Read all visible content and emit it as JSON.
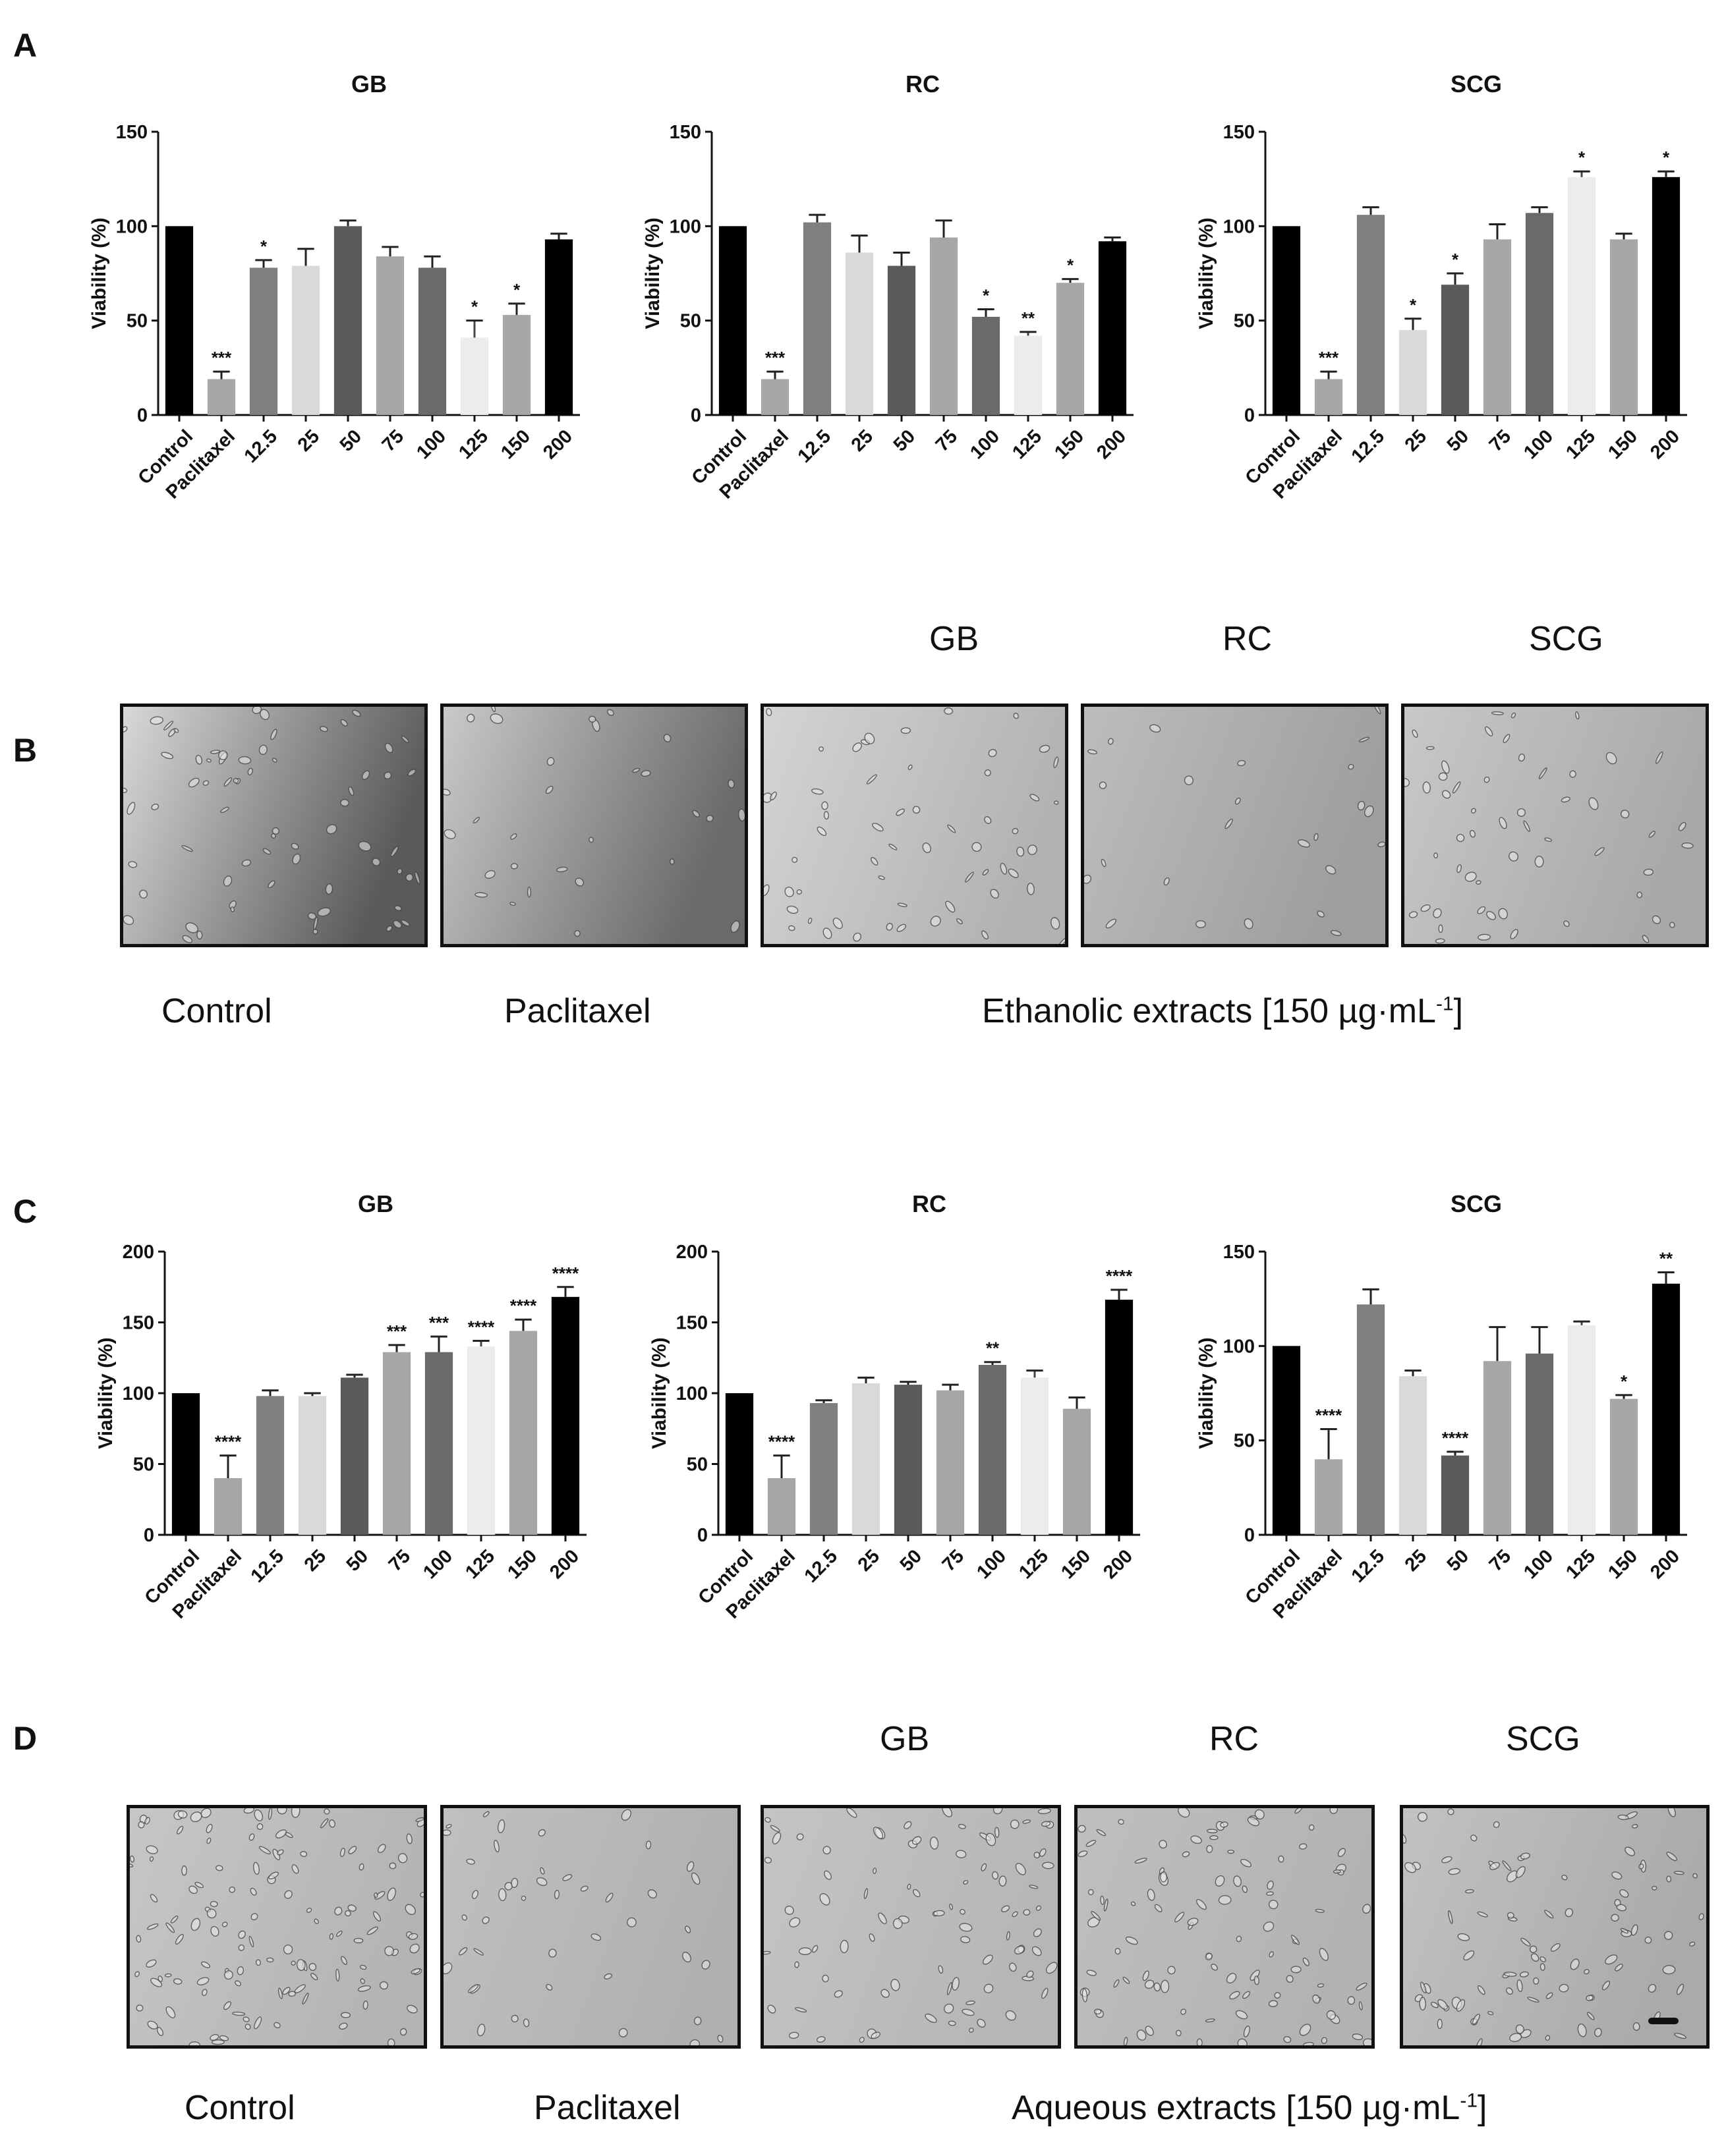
{
  "panels": {
    "A": "A",
    "B": "B",
    "C": "C",
    "D": "D"
  },
  "chart_data": [
    {
      "type": "bar",
      "title": "GB",
      "ylabel": "Viability (%)",
      "categories": [
        "Control",
        "Paclitaxel",
        "12.5",
        "25",
        "50",
        "75",
        "100",
        "125",
        "150",
        "200"
      ],
      "values": [
        100,
        19,
        78,
        79,
        100,
        84,
        78,
        41,
        53,
        93
      ],
      "errors": [
        0,
        4,
        4,
        9,
        3,
        5,
        6,
        9,
        6,
        3
      ],
      "significance": [
        "",
        "***",
        "*",
        "",
        "",
        "",
        "",
        "*",
        "*",
        ""
      ],
      "colors": [
        "#000000",
        "#a6a6a6",
        "#7f7f7f",
        "#d9d9d9",
        "#5a5a5a",
        "#a6a6a6",
        "#6a6a6a",
        "#ececec",
        "#a6a6a6",
        "#000000"
      ],
      "ylim": [
        0,
        150
      ],
      "yticks": [
        0,
        50,
        100,
        150
      ]
    },
    {
      "type": "bar",
      "title": "RC",
      "ylabel": "Viability (%)",
      "categories": [
        "Control",
        "Paclitaxel",
        "12.5",
        "25",
        "50",
        "75",
        "100",
        "125",
        "150",
        "200"
      ],
      "values": [
        100,
        19,
        102,
        86,
        79,
        94,
        52,
        42,
        70,
        92
      ],
      "errors": [
        0,
        4,
        4,
        9,
        7,
        9,
        4,
        2,
        2,
        2
      ],
      "significance": [
        "",
        "***",
        "",
        "",
        "",
        "",
        "*",
        "**",
        "*",
        ""
      ],
      "colors": [
        "#000000",
        "#a6a6a6",
        "#7f7f7f",
        "#d9d9d9",
        "#5a5a5a",
        "#a6a6a6",
        "#6a6a6a",
        "#ececec",
        "#a6a6a6",
        "#000000"
      ],
      "ylim": [
        0,
        150
      ],
      "yticks": [
        0,
        50,
        100,
        150
      ]
    },
    {
      "type": "bar",
      "title": "SCG",
      "ylabel": "Viability (%)",
      "categories": [
        "Control",
        "Paclitaxel",
        "12.5",
        "25",
        "50",
        "75",
        "100",
        "125",
        "150",
        "200"
      ],
      "values": [
        100,
        19,
        106,
        45,
        69,
        93,
        107,
        126,
        93,
        126
      ],
      "errors": [
        0,
        4,
        4,
        6,
        6,
        8,
        3,
        3,
        3,
        3
      ],
      "significance": [
        "",
        "***",
        "",
        "*",
        "*",
        "",
        "",
        "*",
        "",
        "*"
      ],
      "colors": [
        "#000000",
        "#a6a6a6",
        "#7f7f7f",
        "#d9d9d9",
        "#5a5a5a",
        "#a6a6a6",
        "#6a6a6a",
        "#ececec",
        "#a6a6a6",
        "#000000"
      ],
      "ylim": [
        0,
        150
      ],
      "yticks": [
        0,
        50,
        100,
        150
      ]
    },
    {
      "type": "bar",
      "title": "GB",
      "ylabel": "Viability (%)",
      "categories": [
        "Control",
        "Paclitaxel",
        "12.5",
        "25",
        "50",
        "75",
        "100",
        "125",
        "150",
        "200"
      ],
      "values": [
        100,
        40,
        98,
        98,
        111,
        129,
        129,
        133,
        144,
        168
      ],
      "errors": [
        0,
        16,
        4,
        2,
        2,
        5,
        11,
        4,
        8,
        7
      ],
      "significance": [
        "",
        "****",
        "",
        "",
        "",
        "***",
        "***",
        "****",
        "****",
        "****"
      ],
      "colors": [
        "#000000",
        "#a6a6a6",
        "#7f7f7f",
        "#d9d9d9",
        "#5a5a5a",
        "#a6a6a6",
        "#6a6a6a",
        "#ececec",
        "#a6a6a6",
        "#000000"
      ],
      "ylim": [
        0,
        200
      ],
      "yticks": [
        0,
        50,
        100,
        150,
        200
      ]
    },
    {
      "type": "bar",
      "title": "RC",
      "ylabel": "Viability (%)",
      "categories": [
        "Control",
        "Paclitaxel",
        "12.5",
        "25",
        "50",
        "75",
        "100",
        "125",
        "150",
        "200"
      ],
      "values": [
        100,
        40,
        93,
        107,
        106,
        102,
        120,
        111,
        89,
        166
      ],
      "errors": [
        0,
        16,
        2,
        4,
        2,
        4,
        2,
        5,
        8,
        7
      ],
      "significance": [
        "",
        "****",
        "",
        "",
        "",
        "",
        "**",
        "",
        "",
        "****"
      ],
      "colors": [
        "#000000",
        "#a6a6a6",
        "#7f7f7f",
        "#d9d9d9",
        "#5a5a5a",
        "#a6a6a6",
        "#6a6a6a",
        "#ececec",
        "#a6a6a6",
        "#000000"
      ],
      "ylim": [
        0,
        200
      ],
      "yticks": [
        0,
        50,
        100,
        150,
        200
      ]
    },
    {
      "type": "bar",
      "title": "SCG",
      "ylabel": "Viability (%)",
      "categories": [
        "Control",
        "Paclitaxel",
        "12.5",
        "25",
        "50",
        "75",
        "100",
        "125",
        "150",
        "200"
      ],
      "values": [
        100,
        40,
        122,
        84,
        42,
        92,
        96,
        111,
        72,
        133
      ],
      "errors": [
        0,
        16,
        8,
        3,
        2,
        18,
        14,
        2,
        2,
        6
      ],
      "significance": [
        "",
        "****",
        "",
        "",
        "****",
        "",
        "",
        "",
        "*",
        "**"
      ],
      "colors": [
        "#000000",
        "#a6a6a6",
        "#7f7f7f",
        "#d9d9d9",
        "#5a5a5a",
        "#a6a6a6",
        "#6a6a6a",
        "#ececec",
        "#a6a6a6",
        "#000000"
      ],
      "ylim": [
        0,
        150
      ],
      "yticks": [
        0,
        50,
        100,
        150
      ]
    }
  ],
  "micrographs_B": {
    "headers": {
      "gb": "GB",
      "rc": "RC",
      "scg": "SCG"
    },
    "captions": {
      "control": "Control",
      "paclitaxel": "Paclitaxel",
      "extracts": "Ethanolic  extracts  [150 µg·mL",
      "unit_exp": "-1",
      "unit_close": "]"
    }
  },
  "micrographs_D": {
    "headers": {
      "gb": "GB",
      "rc": "RC",
      "scg": "SCG"
    },
    "captions": {
      "control": "Control",
      "paclitaxel": "Paclitaxel",
      "extracts": "Aqueous extracts [150 µg·mL",
      "unit_exp": "-1",
      "unit_close": "]"
    }
  }
}
